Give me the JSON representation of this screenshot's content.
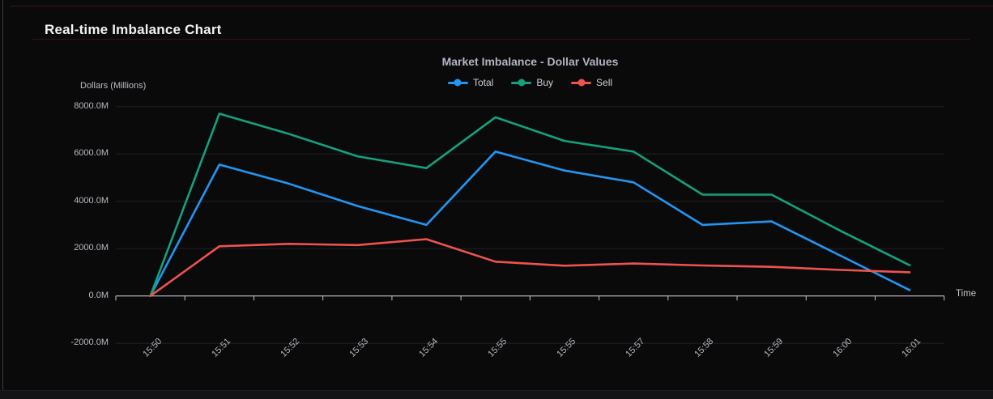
{
  "page": {
    "heading": "Real-time Imbalance Chart"
  },
  "chart_data": {
    "type": "line",
    "title": "Market Imbalance - Dollar Values",
    "xlabel": "Time",
    "ylabel": "Dollars (Millions)",
    "categories": [
      "15:50",
      "15:51",
      "15:52",
      "15:53",
      "15:54",
      "15:55",
      "15:55",
      "15:57",
      "15:58",
      "15:59",
      "16:00",
      "16:01"
    ],
    "series": [
      {
        "name": "Total",
        "color": "#2196f3",
        "values": [
          0,
          5550,
          4750,
          3800,
          3000,
          6100,
          5300,
          4800,
          3000,
          3150,
          1700,
          250
        ]
      },
      {
        "name": "Buy",
        "color": "#14a17c",
        "values": [
          0,
          7700,
          6850,
          5900,
          5400,
          7550,
          6550,
          6100,
          4280,
          4280,
          2750,
          1300
        ]
      },
      {
        "name": "Sell",
        "color": "#ee534e",
        "values": [
          0,
          2100,
          2200,
          2150,
          2400,
          1450,
          1280,
          1370,
          1290,
          1230,
          1100,
          1000
        ]
      }
    ],
    "ylim": [
      -2000,
      8000
    ],
    "y_ticks": [
      {
        "value": 8000,
        "label": "8000.0M"
      },
      {
        "value": 6000,
        "label": "6000.0M"
      },
      {
        "value": 4000,
        "label": "4000.0M"
      },
      {
        "value": 2000,
        "label": "2000.0M"
      },
      {
        "value": 0,
        "label": "0.0M"
      },
      {
        "value": -2000,
        "label": "-2000.0M"
      }
    ],
    "grid": true,
    "legend_position": "top",
    "colors": {
      "axis_line": "#c6c6cb",
      "grid_line": "#202023",
      "tick_text": "#b8b9c0"
    }
  }
}
